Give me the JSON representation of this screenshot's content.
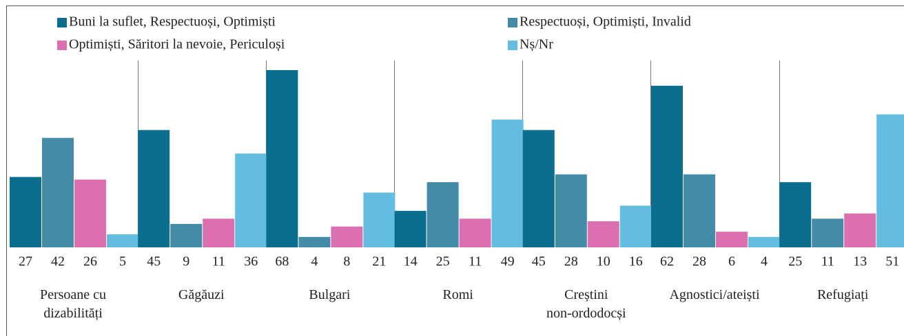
{
  "chart_data": {
    "type": "bar",
    "categories": [
      "Persoane cu\ndizabilități",
      "Găgăuzi",
      "Bulgari",
      "Romi",
      "Creștini\nnon-ordodocși",
      "Agnostici/ateiști",
      "Refugiați"
    ],
    "series": [
      {
        "name": "Buni la suflet, Respectuoși, Optimiști",
        "color": "#0b6e8f",
        "values": [
          27,
          45,
          68,
          14,
          45,
          62,
          25
        ]
      },
      {
        "name": "Respectuoși, Optimiști, Invalid",
        "color": "#448ba7",
        "values": [
          42,
          9,
          4,
          25,
          28,
          28,
          11
        ]
      },
      {
        "name": "Optimiști, Săritori la nevoie, Periculoși",
        "color": "#dc6fb0",
        "values": [
          26,
          11,
          8,
          11,
          10,
          6,
          13
        ]
      },
      {
        "name": "Nș/Nr",
        "color": "#62bde0",
        "values": [
          5,
          36,
          21,
          49,
          16,
          4,
          51
        ]
      }
    ],
    "ylim": [
      0,
      68
    ]
  }
}
